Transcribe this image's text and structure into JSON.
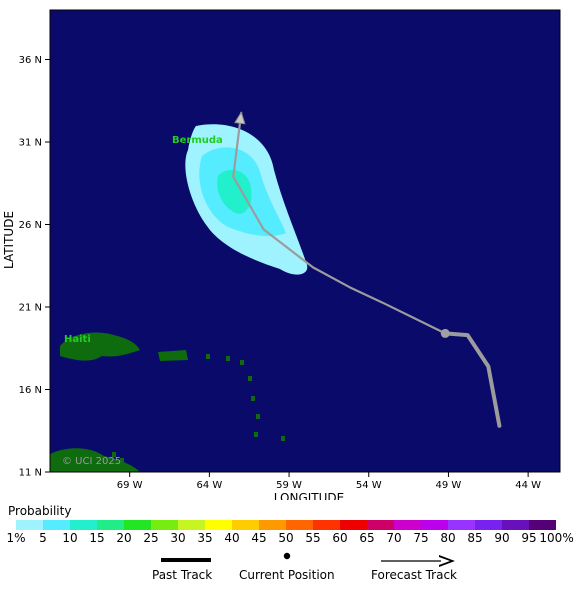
{
  "map": {
    "xlabel": "LONGITUDE",
    "ylabel": "LATITUDE",
    "lon_range": [
      -74,
      -42
    ],
    "lat_range": [
      11,
      39
    ],
    "lon_ticks": [
      "69 W",
      "64 W",
      "59 W",
      "54 W",
      "49 W",
      "44 W"
    ],
    "lat_ticks": [
      "36 N",
      "31 N",
      "26 N",
      "21 N",
      "16 N",
      "11 N"
    ],
    "ocean_color": "#0a0a6b",
    "land_color": "#0e6b0e",
    "labels": {
      "bermuda": "Bermuda",
      "haiti": "Haiti"
    },
    "copyright": "© UCI 2025"
  },
  "chart_data": {
    "type": "map",
    "past_track": [
      [
        -45.8,
        13.8
      ],
      [
        -46.5,
        17.4
      ],
      [
        -47.8,
        19.3
      ],
      [
        -49.2,
        19.4
      ]
    ],
    "current_position": [
      -49.2,
      19.4
    ],
    "forecast_track": [
      [
        -49.2,
        19.4
      ],
      [
        -53.0,
        21.2
      ],
      [
        -55.2,
        22.2
      ],
      [
        -57.5,
        23.4
      ],
      [
        -60.6,
        25.7
      ],
      [
        -62.5,
        28.9
      ],
      [
        -62.0,
        32.8
      ]
    ],
    "probability_cone": "light cyan area from about 23 N to 33 N, 57 W to 66 W, higher probability core near 29 N, 63 W"
  },
  "legend": {
    "title": "Probability",
    "labels": [
      "1%",
      "5",
      "10",
      "15",
      "20",
      "25",
      "30",
      "35",
      "40",
      "45",
      "50",
      "55",
      "60",
      "65",
      "70",
      "75",
      "80",
      "85",
      "90",
      "95",
      "100%"
    ],
    "colors": [
      "#9ff3ff",
      "#55ecff",
      "#22f0cc",
      "#22ec88",
      "#22e622",
      "#77ec11",
      "#c6f522",
      "#ffff00",
      "#ffcc00",
      "#ff9900",
      "#ff6600",
      "#ff3300",
      "#ee0000",
      "#cc0066",
      "#cc00cc",
      "#bb00ee",
      "#9933ff",
      "#7722ee",
      "#6611bb",
      "#550077"
    ],
    "past_track_label": "Past Track",
    "current_position_label": "Current Position",
    "forecast_track_label": "Forecast Track"
  }
}
